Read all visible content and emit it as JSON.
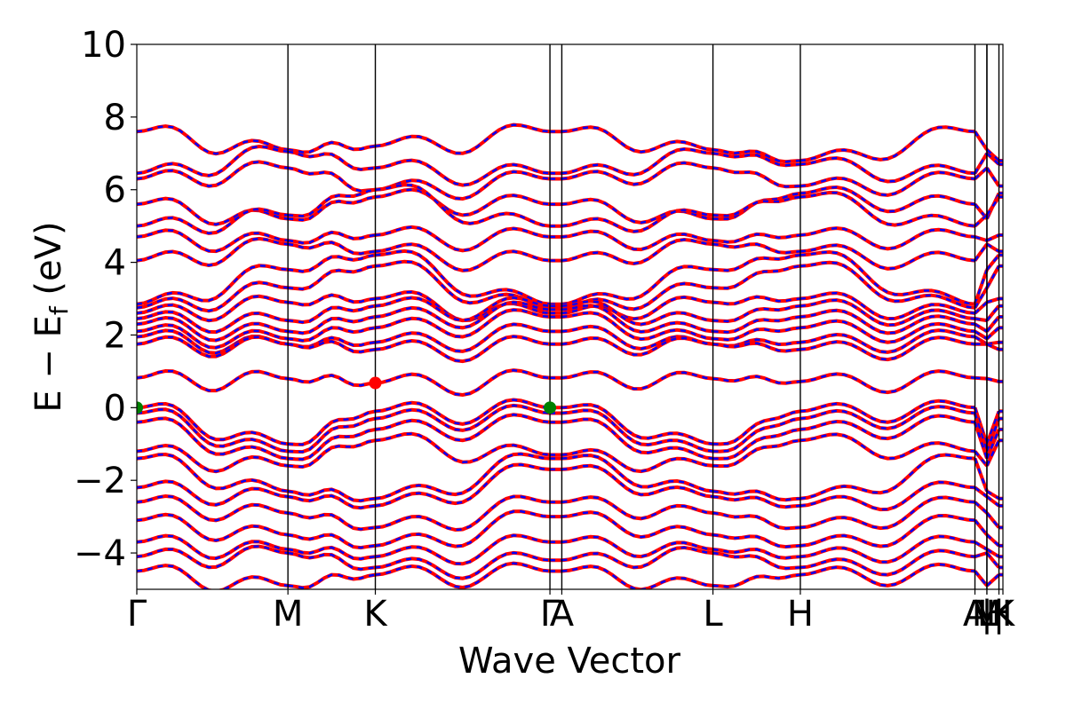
{
  "chart_data": {
    "type": "line",
    "title": "",
    "xlabel": "Wave Vector",
    "ylabel_main": "E − E",
    "ylabel_sub": "f",
    "ylabel_unit": " (eV)",
    "ylim": [
      -5,
      10
    ],
    "y_ticks": [
      {
        "value": 10,
        "label": "10"
      },
      {
        "value": 8,
        "label": "8"
      },
      {
        "value": 6,
        "label": "6"
      },
      {
        "value": 4,
        "label": "4"
      },
      {
        "value": 2,
        "label": "2"
      },
      {
        "value": 0,
        "label": "0"
      },
      {
        "value": -2,
        "label": "−2"
      },
      {
        "value": -4,
        "label": "−4"
      }
    ],
    "k_path": [
      {
        "label": "Γ",
        "k": 0.0
      },
      {
        "label": "M",
        "k": 0.1745
      },
      {
        "label": "K",
        "k": 0.2754
      },
      {
        "label": "Γ",
        "k": 0.477
      },
      {
        "label": "A",
        "k": 0.4907
      },
      {
        "label": "L",
        "k": 0.6652
      },
      {
        "label": "H",
        "k": 0.7661
      },
      {
        "label": "A",
        "k": 0.9677
      },
      {
        "label": "L",
        "k": 0.9815
      },
      {
        "label": "M",
        "k": 0.9815
      },
      {
        "label": "H",
        "k": 0.9954
      },
      {
        "label": "K",
        "k": 1.0
      }
    ],
    "k_tick_labels": [
      {
        "label": "Γ",
        "k": 0.0
      },
      {
        "label": "M",
        "k": 0.1745
      },
      {
        "label": "K",
        "k": 0.2754
      },
      {
        "label": "Γ",
        "k": 0.477
      },
      {
        "label": "A",
        "k": 0.4907
      },
      {
        "label": "L",
        "k": 0.6652
      },
      {
        "label": "H",
        "k": 0.7661
      },
      {
        "label": "A",
        "k": 0.9677
      },
      {
        "label": "M",
        "k": 0.9815
      },
      {
        "label": "|",
        "k": 0.9815
      },
      {
        "label": "L",
        "k": 0.9815
      },
      {
        "label": "|",
        "k": 0.9954
      },
      {
        "label": "H",
        "k": 0.9954
      },
      {
        "label": "K",
        "k": 1.0
      }
    ],
    "series": [
      {
        "style": "solid",
        "color": "#ff0000"
      },
      {
        "style": "dashed",
        "color": "#0000ff"
      }
    ],
    "points": [
      {
        "k": 0.0,
        "E": 0.0,
        "color": "#008000"
      },
      {
        "k": 0.477,
        "E": 0.0,
        "color": "#008000"
      },
      {
        "k": 0.2754,
        "E": 0.68,
        "color": "#ff0000"
      }
    ]
  }
}
